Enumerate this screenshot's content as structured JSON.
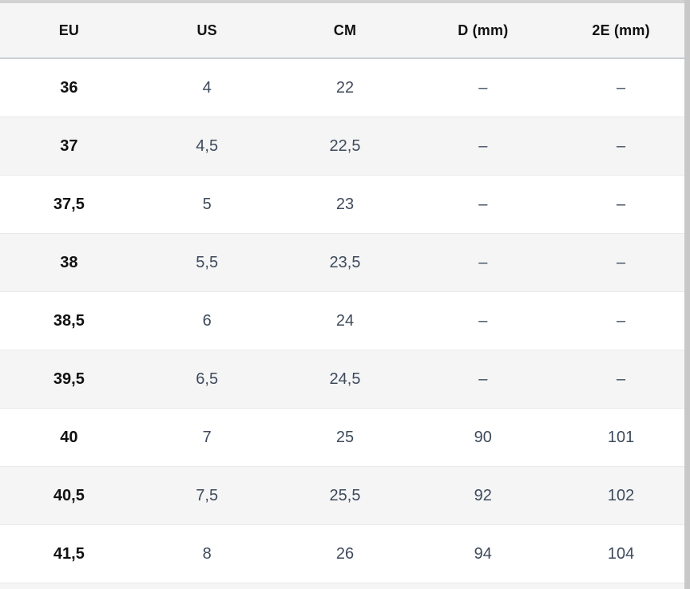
{
  "table": {
    "header": [
      "EU",
      "US",
      "CM",
      "D (mm)",
      "2E (mm)"
    ],
    "header_keys": [
      "eu",
      "us",
      "cm",
      "d-mm",
      "2e-mm"
    ],
    "rows": [
      [
        "36",
        "4",
        "22",
        "–",
        "–"
      ],
      [
        "37",
        "4,5",
        "22,5",
        "–",
        "–"
      ],
      [
        "37,5",
        "5",
        "23",
        "–",
        "–"
      ],
      [
        "38",
        "5,5",
        "23,5",
        "–",
        "–"
      ],
      [
        "38,5",
        "6",
        "24",
        "–",
        "–"
      ],
      [
        "39,5",
        "6,5",
        "24,5",
        "–",
        "–"
      ],
      [
        "40",
        "7",
        "25",
        "90",
        "101"
      ],
      [
        "40,5",
        "7,5",
        "25,5",
        "92",
        "102"
      ],
      [
        "41,5",
        "8",
        "26",
        "94",
        "104"
      ]
    ]
  },
  "colors": {
    "header_bg": "#f5f5f6",
    "stripe_bg": "#f5f5f6",
    "row_bg": "#ffffff",
    "text_black": "#111111",
    "text_slate": "#3e4a5b",
    "row_divider": "#e9e9e9",
    "header_divider": "#ccd0d6",
    "top_border": "#d2d2d2",
    "scrollbar": "#c8c8c8"
  }
}
